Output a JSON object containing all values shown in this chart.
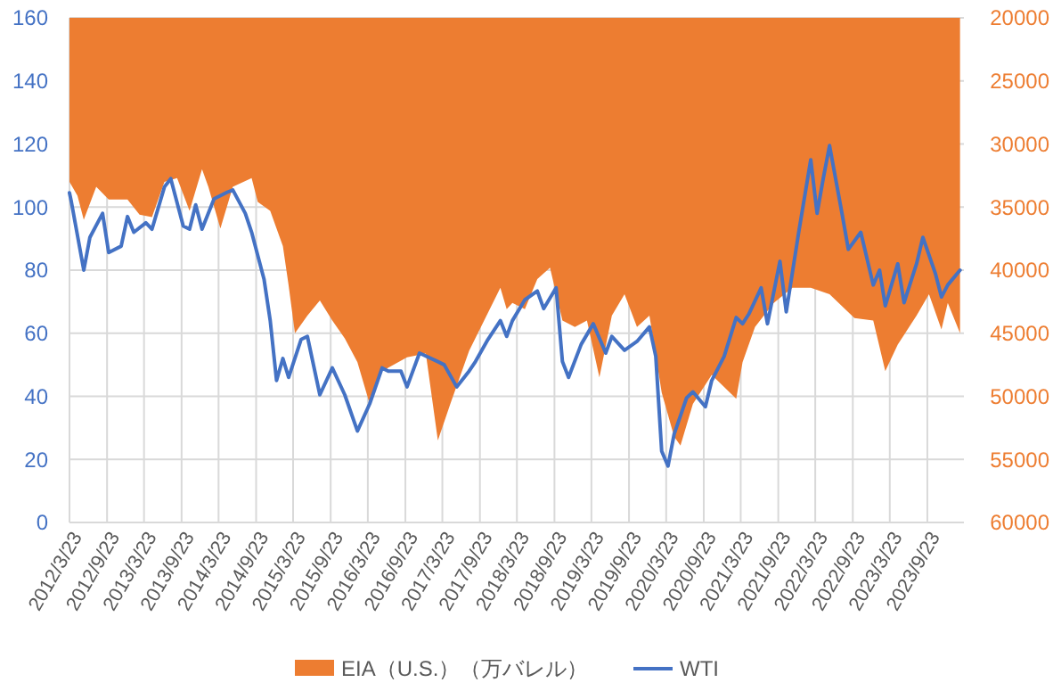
{
  "chart_data": {
    "type": "line",
    "xlim": [
      "2012-03-23",
      "2024-03-20"
    ],
    "xticks": [
      {
        "value": "2012-03-23",
        "label": "2012/3/23"
      },
      {
        "value": "2012-09-23",
        "label": "2012/9/23"
      },
      {
        "value": "2013-03-23",
        "label": "2013/3/23"
      },
      {
        "value": "2013-09-23",
        "label": "2013/9/23"
      },
      {
        "value": "2014-03-23",
        "label": "2014/3/23"
      },
      {
        "value": "2014-09-23",
        "label": "2014/9/23"
      },
      {
        "value": "2015-03-23",
        "label": "2015/3/23"
      },
      {
        "value": "2015-09-23",
        "label": "2015/9/23"
      },
      {
        "value": "2016-03-23",
        "label": "2016/3/23"
      },
      {
        "value": "2016-09-23",
        "label": "2016/9/23"
      },
      {
        "value": "2017-03-23",
        "label": "2017/3/23"
      },
      {
        "value": "2017-09-23",
        "label": "2017/9/23"
      },
      {
        "value": "2018-03-23",
        "label": "2018/3/23"
      },
      {
        "value": "2018-09-23",
        "label": "2018/9/23"
      },
      {
        "value": "2019-03-23",
        "label": "2019/3/23"
      },
      {
        "value": "2019-09-23",
        "label": "2019/9/23"
      },
      {
        "value": "2020-03-23",
        "label": "2020/3/23"
      },
      {
        "value": "2020-09-23",
        "label": "2020/9/23"
      },
      {
        "value": "2021-03-23",
        "label": "2021/3/23"
      },
      {
        "value": "2021-09-23",
        "label": "2021/9/23"
      },
      {
        "value": "2022-03-23",
        "label": "2022/3/23"
      },
      {
        "value": "2022-09-23",
        "label": "2022/9/23"
      },
      {
        "value": "2023-03-23",
        "label": "2023/3/23"
      },
      {
        "value": "2023-09-23",
        "label": "2023/9/23"
      }
    ],
    "ylim": [
      0,
      160
    ],
    "yticks": [
      0,
      20,
      40,
      60,
      80,
      100,
      120,
      140,
      160
    ],
    "y2lim": [
      60000,
      20000
    ],
    "y2ticks": [
      60000,
      55000,
      50000,
      45000,
      40000,
      35000,
      30000,
      25000,
      20000
    ],
    "grid": true,
    "legend": "bottom",
    "series": [
      {
        "name": "EIA（U.S.）（万バレル）",
        "type": "area",
        "axis": "y2",
        "color": "#ed7d31",
        "x": [
          "2012-03-23",
          "2012-05",
          "2012-06",
          "2012-08",
          "2012-10",
          "2013-01",
          "2013-03",
          "2013-05",
          "2013-07",
          "2013-09",
          "2013-11",
          "2014-01",
          "2014-02",
          "2014-04",
          "2014-06",
          "2014-09",
          "2014-10",
          "2014-12",
          "2015-02",
          "2015-03",
          "2015-04",
          "2015-06",
          "2015-08",
          "2015-10",
          "2015-12",
          "2016-02",
          "2016-04",
          "2016-06",
          "2016-10",
          "2017-01",
          "2017-03",
          "2017-05",
          "2017-08",
          "2018-01",
          "2018-02",
          "2018-03",
          "2018-05",
          "2018-07",
          "2018-09",
          "2018-11",
          "2019-01",
          "2019-03",
          "2019-05",
          "2019-07",
          "2019-09",
          "2019-11",
          "2020-01",
          "2020-03",
          "2020-05",
          "2020-06",
          "2020-08",
          "2020-11",
          "2021-03",
          "2021-04",
          "2021-06",
          "2021-09",
          "2021-12",
          "2022-03",
          "2022-06",
          "2022-10",
          "2023-01",
          "2023-03",
          "2023-05",
          "2023-08",
          "2023-10",
          "2023-12",
          "2024-01",
          "2024-03"
        ],
        "values": [
          33000,
          34100,
          36000,
          33400,
          34400,
          34400,
          35600,
          35800,
          33000,
          32700,
          35300,
          32000,
          33400,
          36700,
          33400,
          32700,
          34600,
          35300,
          38100,
          41200,
          45000,
          43600,
          42400,
          44000,
          45400,
          47300,
          50600,
          48000,
          46900,
          46600,
          53500,
          50600,
          46400,
          41400,
          43100,
          42600,
          43100,
          40700,
          39800,
          44000,
          44500,
          44000,
          48500,
          43600,
          41900,
          44500,
          43600,
          49700,
          53200,
          53900,
          50600,
          48300,
          50200,
          47300,
          44500,
          42600,
          41400,
          41400,
          41900,
          43800,
          44000,
          48000,
          45900,
          43600,
          41900,
          44700,
          42600,
          45000
        ]
      },
      {
        "name": "WTI",
        "color": "#4472c4",
        "x": [
          "2012-03-23",
          "2012-04",
          "2012-06",
          "2012-07",
          "2012-09",
          "2012-10",
          "2012-12",
          "2013-01",
          "2013-02",
          "2013-04",
          "2013-05",
          "2013-07",
          "2013-08",
          "2013-10",
          "2013-11",
          "2013-12",
          "2014-01",
          "2014-03",
          "2014-05",
          "2014-06",
          "2014-08",
          "2014-09",
          "2014-11",
          "2014-12",
          "2015-01",
          "2015-02",
          "2015-03",
          "2015-05",
          "2015-06",
          "2015-08",
          "2015-10",
          "2015-12",
          "2016-02",
          "2016-04",
          "2016-06",
          "2016-07",
          "2016-09",
          "2016-10",
          "2016-12",
          "2017-03",
          "2017-04",
          "2017-06",
          "2017-08",
          "2017-09",
          "2017-11",
          "2018-01",
          "2018-02",
          "2018-03",
          "2018-05",
          "2018-07",
          "2018-08",
          "2018-10",
          "2018-11",
          "2018-12",
          "2019-02",
          "2019-04",
          "2019-06",
          "2019-07",
          "2019-09",
          "2019-11",
          "2020-01",
          "2020-02",
          "2020-03",
          "2020-04",
          "2020-05",
          "2020-07",
          "2020-08",
          "2020-10",
          "2020-11",
          "2021-01",
          "2021-03",
          "2021-04",
          "2021-05",
          "2021-07",
          "2021-08",
          "2021-10",
          "2021-11",
          "2022-01",
          "2022-03",
          "2022-04",
          "2022-05",
          "2022-06",
          "2022-08",
          "2022-09",
          "2022-11",
          "2023-01",
          "2023-02",
          "2023-03",
          "2023-05",
          "2023-06",
          "2023-08",
          "2023-09",
          "2023-11",
          "2023-12",
          "2024-01",
          "2024-03"
        ],
        "values": [
          104.5,
          101.7,
          80,
          90.4,
          98,
          85.6,
          87.6,
          97,
          92,
          95,
          93,
          106.4,
          109,
          94,
          93,
          100.7,
          93,
          102.6,
          104.6,
          105.4,
          98,
          92,
          77,
          64,
          45,
          52,
          46,
          58,
          59,
          40.5,
          49,
          40.5,
          29,
          37.6,
          49,
          48,
          48,
          43,
          53.7,
          51,
          50,
          43,
          48,
          51,
          58,
          64,
          59,
          64,
          70.6,
          73.4,
          67.8,
          74.4,
          51,
          46,
          56.5,
          63,
          53.7,
          59,
          54.6,
          57.4,
          62,
          52.7,
          22.6,
          17.9,
          28,
          39.5,
          41.4,
          36.7,
          45,
          52.7,
          65,
          63,
          66,
          74.4,
          63,
          82.8,
          66.8,
          92,
          115,
          98,
          109,
          119.5,
          98,
          86.6,
          92,
          75.3,
          80,
          68.7,
          82,
          69.7,
          82,
          90.4,
          79,
          71.5,
          75.3,
          80
        ]
      }
    ]
  }
}
